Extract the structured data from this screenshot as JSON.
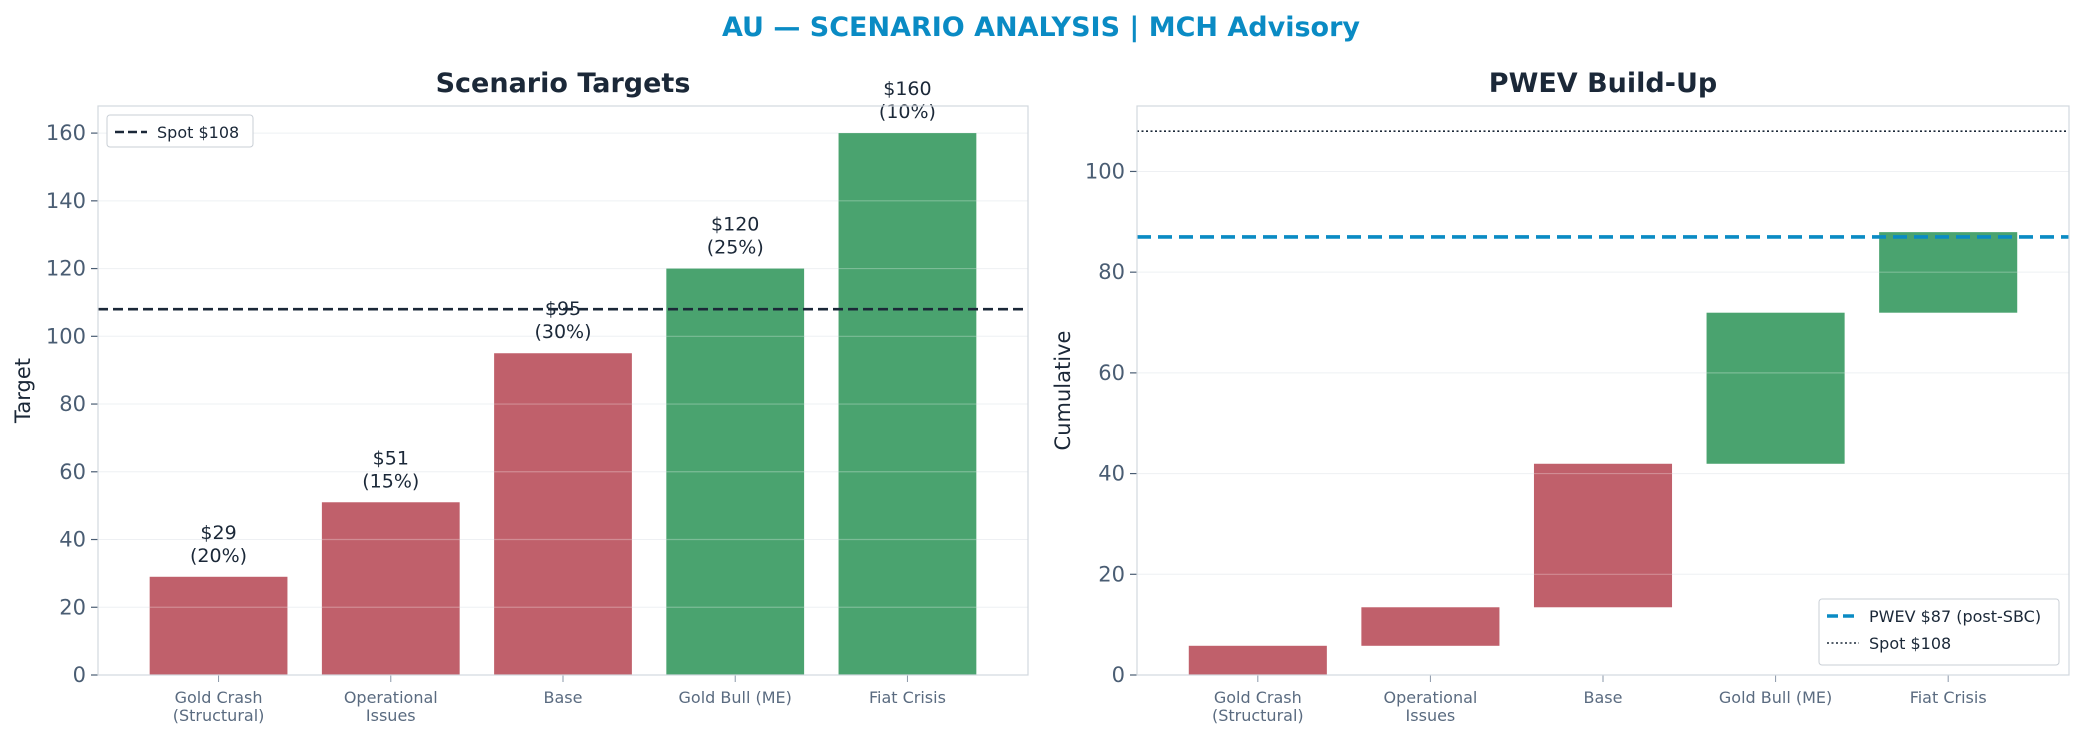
{
  "suptitle": "AU — SCENARIO ANALYSIS | MCH Advisory",
  "colors": {
    "bear": "#c0606b",
    "bull": "#4aa36f",
    "spot_line": "#1b2838",
    "pwev_line": "#0a8bc4",
    "title": "#0a8bc4"
  },
  "chart_data": [
    {
      "type": "bar",
      "title": "Scenario Targets",
      "xlabel": "",
      "ylabel": "Target",
      "categories": [
        "Gold Crash\n(Structural)",
        "Operational\nIssues",
        "Base",
        "Gold Bull (ME)",
        "Fiat Crisis"
      ],
      "values": [
        29,
        51,
        95,
        120,
        160
      ],
      "probabilities": [
        "20%",
        "15%",
        "30%",
        "25%",
        "10%"
      ],
      "bar_labels": [
        "$29\n(20%)",
        "$51\n(15%)",
        "$95\n(30%)",
        "$120\n(25%)",
        "$160\n(10%)"
      ],
      "bar_colors": [
        "bear",
        "bear",
        "bear",
        "bull",
        "bull"
      ],
      "ylim": [
        0,
        168
      ],
      "yticks": [
        0,
        20,
        40,
        60,
        80,
        100,
        120,
        140,
        160
      ],
      "reference_lines": [
        {
          "label": "Spot $108",
          "value": 108,
          "style": "dashed"
        }
      ],
      "legend": "top-left",
      "grid": true
    },
    {
      "type": "bar",
      "subtype": "waterfall",
      "title": "PWEV Build-Up",
      "xlabel": "",
      "ylabel": "Cumulative",
      "categories": [
        "Gold Crash\n(Structural)",
        "Operational\nIssues",
        "Base",
        "Gold Bull (ME)",
        "Fiat Crisis"
      ],
      "segments": [
        {
          "start": 0,
          "end": 5.8
        },
        {
          "start": 5.8,
          "end": 13.45
        },
        {
          "start": 13.45,
          "end": 41.95
        },
        {
          "start": 41.95,
          "end": 71.95
        },
        {
          "start": 71.95,
          "end": 87.95
        }
      ],
      "bar_colors": [
        "bear",
        "bear",
        "bear",
        "bull",
        "bull"
      ],
      "ylim": [
        0,
        113
      ],
      "yticks": [
        0,
        20,
        40,
        60,
        80,
        100
      ],
      "reference_lines": [
        {
          "label": "PWEV $87 (post-SBC)",
          "value": 87,
          "style": "dashed"
        },
        {
          "label": "Spot $108",
          "value": 108,
          "style": "dotted"
        }
      ],
      "legend": "bottom-right",
      "grid": true
    }
  ]
}
